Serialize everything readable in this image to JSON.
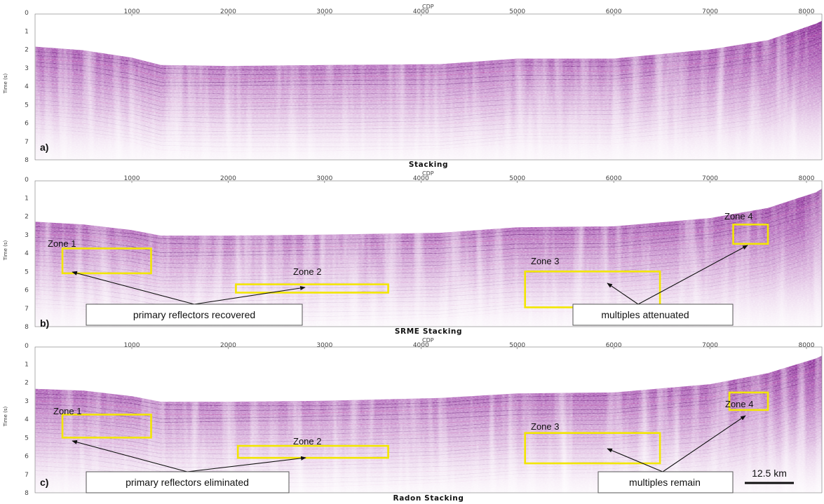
{
  "axis": {
    "x_title": "CDP",
    "y_title": "Time (s)",
    "x_ticks": [
      "1000",
      "2000",
      "3000",
      "4000",
      "5000",
      "6000",
      "7000",
      "8000"
    ],
    "y_ticks": [
      "0",
      "1",
      "2",
      "3",
      "4",
      "5",
      "6",
      "7",
      "8"
    ]
  },
  "panels": [
    {
      "label": "a)",
      "title": "Stacking",
      "zones": [],
      "annotations": []
    },
    {
      "label": "b)",
      "title": "SRME Stacking",
      "zones": [
        {
          "label": "Zone 1",
          "cdp": [
            280,
            1200
          ],
          "time": [
            3.75,
            5.1
          ]
        },
        {
          "label": "Zone 2",
          "cdp": [
            2080,
            3660
          ],
          "time": [
            5.7,
            6.15
          ]
        },
        {
          "label": "Zone 3",
          "cdp": [
            5080,
            6480
          ],
          "time": [
            5.0,
            6.95
          ]
        },
        {
          "label": "Zone 4",
          "cdp": [
            7240,
            7600
          ],
          "time": [
            2.45,
            3.5
          ]
        }
      ],
      "annotations": [
        "primary reflectors recovered",
        "multiples attenuated"
      ]
    },
    {
      "label": "c)",
      "title": "Radon Stacking",
      "zones": [
        {
          "label": "Zone 1",
          "cdp": [
            280,
            1200
          ],
          "time": [
            3.75,
            5.0
          ]
        },
        {
          "label": "Zone 2",
          "cdp": [
            2100,
            3660
          ],
          "time": [
            5.45,
            6.1
          ]
        },
        {
          "label": "Zone 3",
          "cdp": [
            5080,
            6480
          ],
          "time": [
            4.75,
            6.4
          ]
        },
        {
          "label": "Zone 4",
          "cdp": [
            7200,
            7600
          ],
          "time": [
            2.55,
            3.5
          ]
        }
      ],
      "annotations": [
        "primary reflectors eliminated",
        "multiples remain"
      ]
    }
  ],
  "scale_bar": {
    "label": "12.5 km"
  },
  "colors": {
    "seismic": "#8e2a9a",
    "zone_box": "#f2e600",
    "arrow": "#111111",
    "background": "#ffffff"
  }
}
